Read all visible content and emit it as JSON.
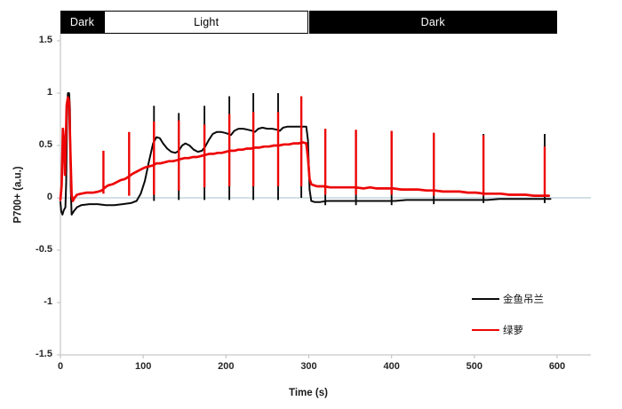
{
  "chart_data": {
    "type": "line",
    "title": "",
    "xlabel": "Time (s)",
    "ylabel": "P700+ (a.u.)",
    "xlim": [
      0,
      640
    ],
    "ylim": [
      -1.5,
      1.5
    ],
    "x_ticks": [
      0,
      100,
      200,
      300,
      400,
      500,
      600
    ],
    "y_ticks": [
      1.5,
      1,
      0.5,
      0,
      -0.5,
      -1,
      -1.5
    ],
    "grid": false,
    "legend_position": "inside-right-bottom",
    "colors": {
      "zero_line": "#b7ccd8",
      "axis_line": "#c6c6c6",
      "tick_text": "#262626"
    },
    "phase_bar": {
      "segments": [
        {
          "label": "Dark",
          "style": "dark",
          "t0": 0,
          "t1": 52.5
        },
        {
          "label": "Light",
          "style": "light",
          "t0": 52.5,
          "t1": 300
        },
        {
          "label": "Dark",
          "style": "dark",
          "t0": 300,
          "t1": 600
        }
      ]
    },
    "series": [
      {
        "name": "金鱼吊兰",
        "color": "#0a0a0a",
        "line_width": 2.0,
        "pulse_width": 1.9,
        "points": [
          [
            0,
            -0.04
          ],
          [
            1,
            -0.13
          ],
          [
            2.5,
            -0.16
          ],
          [
            4,
            -0.12
          ],
          [
            6,
            -0.09
          ],
          [
            7,
            0.15
          ],
          [
            8,
            0.85
          ],
          [
            9,
            1.0
          ],
          [
            10.5,
            1.0
          ],
          [
            11.5,
            0.85
          ],
          [
            12.5,
            0.1
          ],
          [
            13.5,
            -0.16
          ],
          [
            16,
            -0.13
          ],
          [
            20,
            -0.09
          ],
          [
            25,
            -0.07
          ],
          [
            35,
            -0.06
          ],
          [
            45,
            -0.06
          ],
          [
            55,
            -0.07
          ],
          [
            65,
            -0.07
          ],
          [
            75,
            -0.06
          ],
          [
            85,
            -0.05
          ],
          [
            92,
            -0.03
          ],
          [
            97,
            0.04
          ],
          [
            102,
            0.16
          ],
          [
            107,
            0.35
          ],
          [
            112,
            0.52
          ],
          [
            116,
            0.58
          ],
          [
            120,
            0.57
          ],
          [
            124,
            0.52
          ],
          [
            129,
            0.47
          ],
          [
            134,
            0.44
          ],
          [
            139,
            0.43
          ],
          [
            143,
            0.45
          ],
          [
            147,
            0.5
          ],
          [
            151,
            0.52
          ],
          [
            156,
            0.5
          ],
          [
            161,
            0.46
          ],
          [
            166,
            0.44
          ],
          [
            171,
            0.45
          ],
          [
            175,
            0.49
          ],
          [
            179,
            0.55
          ],
          [
            184,
            0.61
          ],
          [
            189,
            0.63
          ],
          [
            194,
            0.63
          ],
          [
            199,
            0.62
          ],
          [
            203,
            0.61
          ],
          [
            206,
            0.6
          ],
          [
            210,
            0.64
          ],
          [
            215,
            0.66
          ],
          [
            221,
            0.66
          ],
          [
            227,
            0.65
          ],
          [
            232,
            0.64
          ],
          [
            235,
            0.63
          ],
          [
            239,
            0.66
          ],
          [
            244,
            0.67
          ],
          [
            250,
            0.66
          ],
          [
            256,
            0.66
          ],
          [
            262,
            0.65
          ],
          [
            265,
            0.64
          ],
          [
            269,
            0.67
          ],
          [
            274,
            0.68
          ],
          [
            280,
            0.68
          ],
          [
            286,
            0.68
          ],
          [
            292,
            0.68
          ],
          [
            297,
            0.68
          ],
          [
            299,
            0.55
          ],
          [
            301,
            0.08
          ],
          [
            303,
            -0.03
          ],
          [
            307,
            -0.04
          ],
          [
            314,
            -0.04
          ],
          [
            322,
            -0.03
          ],
          [
            332,
            -0.03
          ],
          [
            344,
            -0.03
          ],
          [
            356,
            -0.03
          ],
          [
            368,
            -0.03
          ],
          [
            380,
            -0.03
          ],
          [
            392,
            -0.03
          ],
          [
            404,
            -0.03
          ],
          [
            418,
            -0.02
          ],
          [
            432,
            -0.02
          ],
          [
            446,
            -0.02
          ],
          [
            460,
            -0.02
          ],
          [
            474,
            -0.02
          ],
          [
            488,
            -0.02
          ],
          [
            502,
            -0.02
          ],
          [
            516,
            -0.02
          ],
          [
            530,
            -0.01
          ],
          [
            544,
            -0.01
          ],
          [
            558,
            -0.01
          ],
          [
            572,
            -0.01
          ],
          [
            584,
            -0.01
          ],
          [
            592,
            -0.01
          ]
        ],
        "pulses": [
          [
            113,
            -0.03,
            0.88
          ],
          [
            143,
            -0.02,
            0.81
          ],
          [
            174,
            -0.02,
            0.88
          ],
          [
            204,
            -0.02,
            0.97
          ],
          [
            233,
            -0.02,
            1.0
          ],
          [
            263,
            -0.02,
            1.0
          ],
          [
            291,
            0.0,
            0.85
          ],
          [
            320,
            -0.07,
            0.63
          ],
          [
            357,
            -0.07,
            0.63
          ],
          [
            400,
            -0.07,
            0.62
          ],
          [
            451,
            -0.06,
            0.62
          ],
          [
            511,
            -0.05,
            0.61
          ],
          [
            585,
            -0.05,
            0.61
          ]
        ]
      },
      {
        "name": "绿萝",
        "color": "#ed0505",
        "line_width": 2.7,
        "pulse_width": 2.4,
        "points": [
          [
            0,
            -0.02
          ],
          [
            1.5,
            0.12
          ],
          [
            3,
            0.66
          ],
          [
            4.5,
            0.52
          ],
          [
            5.5,
            0.22
          ],
          [
            6.5,
            0.55
          ],
          [
            7.5,
            0.88
          ],
          [
            9,
            0.96
          ],
          [
            10.5,
            0.92
          ],
          [
            12,
            0.45
          ],
          [
            13.5,
            0.03
          ],
          [
            15,
            -0.03
          ],
          [
            17,
            0.0
          ],
          [
            20,
            0.03
          ],
          [
            25,
            0.04
          ],
          [
            32,
            0.05
          ],
          [
            40,
            0.05
          ],
          [
            46,
            0.06
          ],
          [
            50,
            0.07
          ],
          [
            54,
            0.1
          ],
          [
            58,
            0.12
          ],
          [
            63,
            0.13
          ],
          [
            68,
            0.15
          ],
          [
            73,
            0.17
          ],
          [
            78,
            0.18
          ],
          [
            82,
            0.2
          ],
          [
            87,
            0.23
          ],
          [
            92,
            0.25
          ],
          [
            97,
            0.27
          ],
          [
            102,
            0.29
          ],
          [
            107,
            0.3
          ],
          [
            112,
            0.31
          ],
          [
            116,
            0.33
          ],
          [
            121,
            0.33
          ],
          [
            126,
            0.34
          ],
          [
            131,
            0.35
          ],
          [
            136,
            0.35
          ],
          [
            141,
            0.36
          ],
          [
            145,
            0.37
          ],
          [
            150,
            0.38
          ],
          [
            155,
            0.38
          ],
          [
            160,
            0.39
          ],
          [
            165,
            0.39
          ],
          [
            170,
            0.4
          ],
          [
            175,
            0.41
          ],
          [
            180,
            0.42
          ],
          [
            185,
            0.42
          ],
          [
            190,
            0.43
          ],
          [
            195,
            0.43
          ],
          [
            200,
            0.44
          ],
          [
            205,
            0.45
          ],
          [
            210,
            0.45
          ],
          [
            215,
            0.46
          ],
          [
            220,
            0.46
          ],
          [
            225,
            0.47
          ],
          [
            230,
            0.47
          ],
          [
            235,
            0.48
          ],
          [
            240,
            0.48
          ],
          [
            246,
            0.49
          ],
          [
            252,
            0.49
          ],
          [
            258,
            0.5
          ],
          [
            264,
            0.5
          ],
          [
            270,
            0.51
          ],
          [
            276,
            0.51
          ],
          [
            282,
            0.52
          ],
          [
            288,
            0.52
          ],
          [
            293,
            0.53
          ],
          [
            297,
            0.52
          ],
          [
            299,
            0.38
          ],
          [
            301,
            0.18
          ],
          [
            303,
            0.13
          ],
          [
            306,
            0.12
          ],
          [
            310,
            0.11
          ],
          [
            318,
            0.11
          ],
          [
            326,
            0.1
          ],
          [
            336,
            0.1
          ],
          [
            346,
            0.1
          ],
          [
            356,
            0.1
          ],
          [
            366,
            0.09
          ],
          [
            374,
            0.1
          ],
          [
            382,
            0.09
          ],
          [
            392,
            0.09
          ],
          [
            402,
            0.09
          ],
          [
            412,
            0.08
          ],
          [
            422,
            0.08
          ],
          [
            432,
            0.08
          ],
          [
            442,
            0.07
          ],
          [
            452,
            0.07
          ],
          [
            462,
            0.06
          ],
          [
            472,
            0.06
          ],
          [
            482,
            0.06
          ],
          [
            492,
            0.05
          ],
          [
            502,
            0.05
          ],
          [
            512,
            0.04
          ],
          [
            522,
            0.04
          ],
          [
            532,
            0.04
          ],
          [
            542,
            0.03
          ],
          [
            552,
            0.03
          ],
          [
            562,
            0.03
          ],
          [
            572,
            0.02
          ],
          [
            582,
            0.02
          ],
          [
            590,
            0.02
          ]
        ],
        "pulses": [
          [
            52,
            0.04,
            0.45
          ],
          [
            83,
            0.02,
            0.63
          ],
          [
            113,
            0.03,
            0.73
          ],
          [
            143,
            0.07,
            0.74
          ],
          [
            174,
            0.1,
            0.7
          ],
          [
            204,
            0.11,
            0.8
          ],
          [
            233,
            0.11,
            0.82
          ],
          [
            263,
            0.11,
            0.82
          ],
          [
            291,
            0.11,
            0.97
          ],
          [
            320,
            0.03,
            0.66
          ],
          [
            357,
            0.03,
            0.65
          ],
          [
            400,
            0.03,
            0.64
          ],
          [
            451,
            0.02,
            0.62
          ],
          [
            511,
            0.02,
            0.6
          ],
          [
            585,
            0.01,
            0.49
          ]
        ]
      }
    ]
  },
  "legend": {
    "items": [
      {
        "label": "金鱼吊兰",
        "color": "#0a0a0a"
      },
      {
        "label": "绿萝",
        "color": "#ed0505"
      }
    ]
  }
}
